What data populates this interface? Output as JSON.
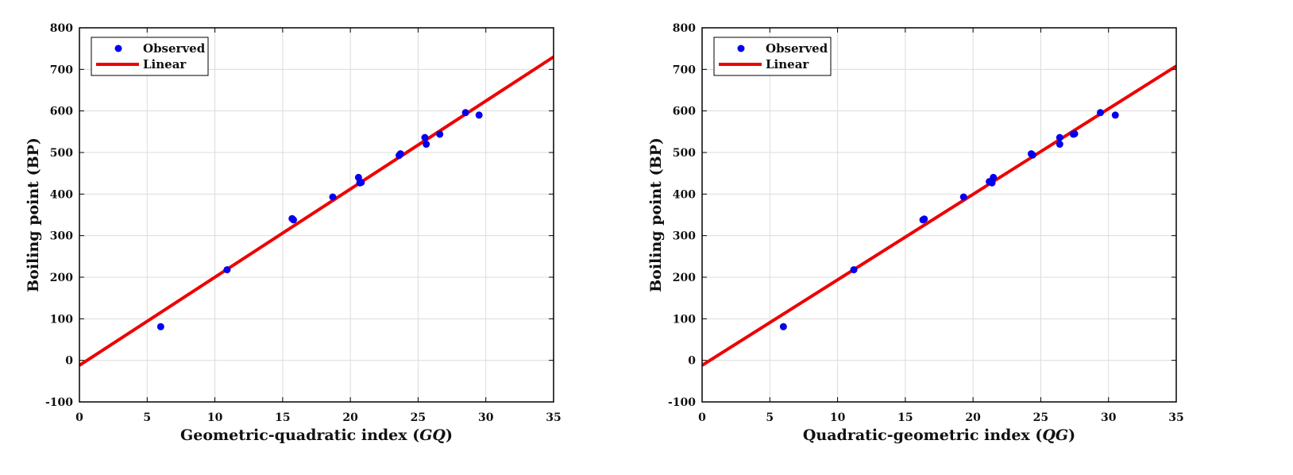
{
  "colors": {
    "points": "#0000ee",
    "fit_line": "#ee0000",
    "grid": "#dcdcdc",
    "frame": "#000000"
  },
  "chart_data": [
    {
      "type": "scatter",
      "xlabel_text": "Geometric-quadratic index (",
      "xlabel_symbol": "GQ",
      "xlabel_close": ")",
      "ylabel": "Boiling point (BP)",
      "xlim": [
        0,
        35
      ],
      "ylim": [
        -100,
        800
      ],
      "xticks": [
        0,
        5,
        10,
        15,
        20,
        25,
        30,
        35
      ],
      "yticks": [
        -100,
        0,
        100,
        200,
        300,
        400,
        500,
        600,
        700,
        800
      ],
      "grid": true,
      "legend_position": "top-left",
      "legend": [
        {
          "label": "Observed",
          "kind": "marker"
        },
        {
          "label": "Linear",
          "kind": "line"
        }
      ],
      "series": [
        {
          "name": "Observed",
          "points": [
            [
              6.0,
              81
            ],
            [
              10.9,
              218
            ],
            [
              15.7,
              341
            ],
            [
              15.8,
              338
            ],
            [
              18.7,
              393
            ],
            [
              20.6,
              440
            ],
            [
              20.7,
              427
            ],
            [
              20.8,
              428
            ],
            [
              23.6,
              493
            ],
            [
              23.7,
              497
            ],
            [
              25.5,
              536
            ],
            [
              25.6,
              520
            ],
            [
              26.6,
              544
            ],
            [
              28.5,
              596
            ],
            [
              29.5,
              590
            ]
          ]
        },
        {
          "name": "Linear",
          "line": {
            "x": [
              0,
              35
            ],
            "y": [
              -12,
              730
            ]
          }
        }
      ]
    },
    {
      "type": "scatter",
      "xlabel_text": "Quadratic-geometric index (",
      "xlabel_symbol": "QG",
      "xlabel_close": ")",
      "ylabel": "Boiling point (BP)",
      "xlim": [
        0,
        35
      ],
      "ylim": [
        -100,
        800
      ],
      "xticks": [
        0,
        5,
        10,
        15,
        20,
        25,
        30,
        35
      ],
      "yticks": [
        -100,
        0,
        100,
        200,
        300,
        400,
        500,
        600,
        700,
        800
      ],
      "grid": true,
      "legend_position": "top-left",
      "legend": [
        {
          "label": "Observed",
          "kind": "marker"
        },
        {
          "label": "Linear",
          "kind": "line"
        }
      ],
      "series": [
        {
          "name": "Observed",
          "points": [
            [
              6.0,
              81
            ],
            [
              11.2,
              218
            ],
            [
              16.3,
              338
            ],
            [
              16.4,
              340
            ],
            [
              19.3,
              393
            ],
            [
              21.2,
              430
            ],
            [
              21.4,
              427
            ],
            [
              21.5,
              440
            ],
            [
              24.3,
              497
            ],
            [
              24.4,
              494
            ],
            [
              26.4,
              536
            ],
            [
              26.4,
              520
            ],
            [
              27.4,
              544
            ],
            [
              27.5,
              545
            ],
            [
              29.4,
              596
            ],
            [
              30.5,
              590
            ]
          ]
        },
        {
          "name": "Linear",
          "line": {
            "x": [
              0,
              35
            ],
            "y": [
              -12,
              708
            ]
          }
        }
      ]
    }
  ]
}
